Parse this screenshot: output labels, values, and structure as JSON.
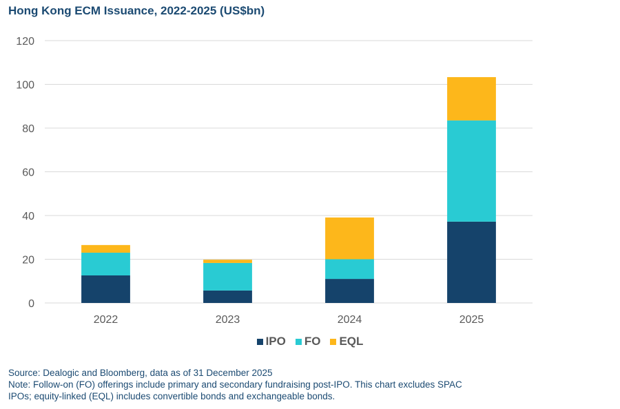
{
  "title": "Hong Kong ECM Issuance, 2022-2025 (US$bn)",
  "chart_data": {
    "type": "bar",
    "stacked": true,
    "title": "Hong Kong ECM Issuance, 2022-2025 (US$bn)",
    "xlabel": "",
    "ylabel": "",
    "categories": [
      "2022",
      "2023",
      "2024",
      "2025"
    ],
    "series": [
      {
        "name": "IPO",
        "color": "#15436b",
        "values": [
          12.6,
          5.7,
          11.0,
          37.2
        ]
      },
      {
        "name": "FO",
        "color": "#29cbd3",
        "values": [
          10.4,
          12.6,
          9.0,
          46.3
        ]
      },
      {
        "name": "EQL",
        "color": "#fdb71b",
        "values": [
          3.5,
          1.5,
          19.1,
          19.8
        ]
      }
    ],
    "ylim": [
      0,
      120
    ],
    "yticks": [
      0,
      20,
      40,
      60,
      80,
      100,
      120
    ],
    "grid": true,
    "legend_position": "bottom"
  },
  "legend": [
    "IPO",
    "FO",
    "EQL"
  ],
  "source": "Source: Dealogic and Bloomberg, data as of 31 December 2025",
  "note_line1": "Note: Follow-on (FO) offerings include primary and secondary fundraising post-IPO. This chart excludes SPAC",
  "note_line2": "IPOs; equity-linked (EQL) includes convertible bonds and exchangeable bonds."
}
